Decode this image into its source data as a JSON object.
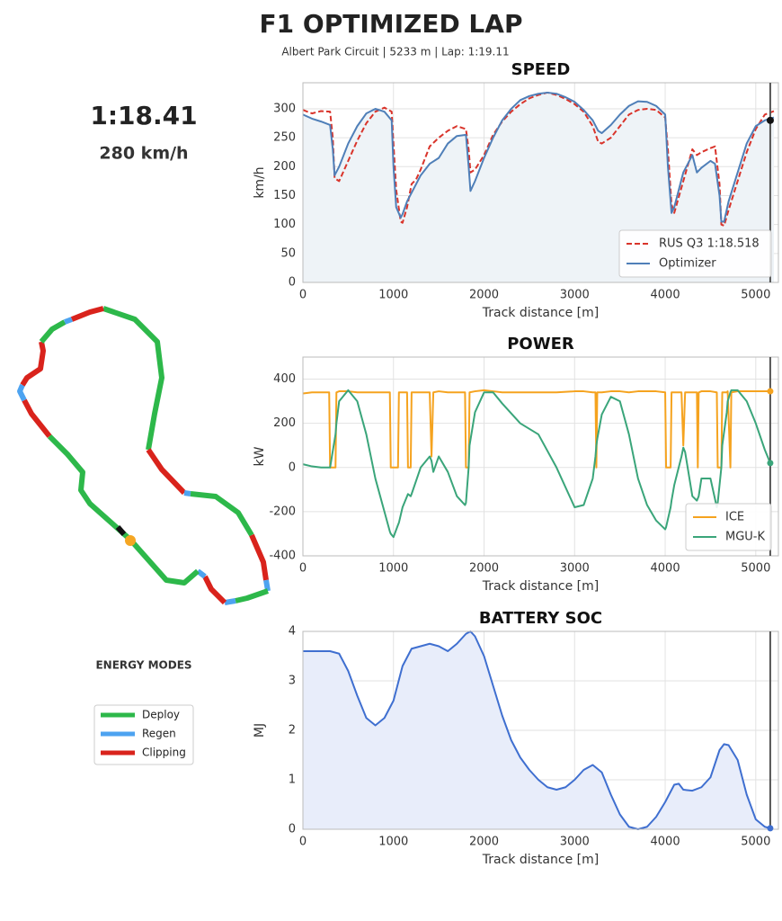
{
  "header": {
    "title": "F1 OPTIMIZED LAP",
    "subtitle": "Albert Park Circuit  |  5233 m  |  Lap: 1:19.11"
  },
  "lap_time": "1:18.41",
  "current_speed": "280 km/h",
  "energy_modes": {
    "title": "ENERGY MODES",
    "items": [
      {
        "label": "Deploy",
        "color": "#2db84a"
      },
      {
        "label": "Regen",
        "color": "#4da3f0"
      },
      {
        "label": "Clipping",
        "color": "#d9231c"
      }
    ]
  },
  "chart_data": [
    {
      "type": "line",
      "title": "SPEED",
      "xlabel": "Track distance [m]",
      "ylabel": "km/h",
      "x": [
        0,
        100,
        200,
        300,
        330,
        350,
        400,
        500,
        600,
        700,
        800,
        900,
        980,
        1000,
        1030,
        1080,
        1100,
        1150,
        1200,
        1250,
        1300,
        1400,
        1500,
        1600,
        1700,
        1800,
        1830,
        1850,
        1900,
        2000,
        2100,
        2200,
        2300,
        2400,
        2500,
        2600,
        2700,
        2800,
        2900,
        3000,
        3100,
        3200,
        3260,
        3300,
        3400,
        3500,
        3600,
        3700,
        3800,
        3900,
        4000,
        4030,
        4070,
        4100,
        4200,
        4300,
        4350,
        4400,
        4500,
        4550,
        4600,
        4620,
        4650,
        4700,
        4800,
        4900,
        5000,
        5100,
        5200
      ],
      "series": [
        {
          "name": "RUS Q3 1:18.518",
          "color": "#d9342b",
          "dashed": true,
          "values": [
            298,
            292,
            296,
            295,
            250,
            180,
            175,
            210,
            245,
            275,
            295,
            302,
            295,
            240,
            160,
            105,
            103,
            130,
            170,
            178,
            195,
            235,
            250,
            262,
            270,
            265,
            230,
            190,
            195,
            220,
            255,
            278,
            295,
            308,
            318,
            324,
            328,
            324,
            317,
            308,
            295,
            270,
            243,
            240,
            250,
            270,
            290,
            298,
            300,
            298,
            285,
            230,
            135,
            120,
            175,
            230,
            220,
            225,
            232,
            235,
            170,
            100,
            98,
            125,
            175,
            225,
            265,
            290,
            296
          ]
        },
        {
          "name": "Optimizer",
          "color": "#4f7fb8",
          "fill": "#eef3f7",
          "values": [
            290,
            283,
            278,
            272,
            230,
            185,
            200,
            240,
            270,
            292,
            300,
            295,
            280,
            200,
            130,
            112,
            118,
            140,
            155,
            170,
            185,
            205,
            215,
            240,
            253,
            255,
            200,
            158,
            175,
            215,
            250,
            280,
            300,
            315,
            322,
            326,
            328,
            326,
            320,
            312,
            298,
            280,
            262,
            258,
            272,
            290,
            305,
            313,
            312,
            305,
            290,
            200,
            120,
            130,
            190,
            220,
            190,
            198,
            210,
            205,
            150,
            105,
            105,
            140,
            190,
            240,
            270,
            280,
            285
          ]
        }
      ],
      "xlim": [
        0,
        5250
      ],
      "ylim": [
        0,
        345
      ],
      "xticks": [
        0,
        1000,
        2000,
        3000,
        4000,
        5000
      ],
      "yticks": [
        0,
        50,
        100,
        150,
        200,
        250,
        300
      ],
      "grid": true,
      "legend": "lower right",
      "cursor_x": 5160,
      "cursor_value": 280
    },
    {
      "type": "line",
      "title": "POWER",
      "xlabel": "Track distance [m]",
      "ylabel": "kW",
      "x": [
        0,
        100,
        200,
        290,
        300,
        360,
        370,
        400,
        500,
        600,
        700,
        800,
        900,
        960,
        970,
        1000,
        1050,
        1060,
        1100,
        1150,
        1160,
        1190,
        1200,
        1300,
        1400,
        1420,
        1440,
        1500,
        1600,
        1700,
        1790,
        1800,
        1830,
        1840,
        1900,
        2000,
        2100,
        2200,
        2400,
        2600,
        2800,
        3000,
        3100,
        3200,
        3230,
        3240,
        3250,
        3300,
        3400,
        3500,
        3600,
        3700,
        3800,
        3900,
        4000,
        4010,
        4060,
        4070,
        4100,
        4180,
        4200,
        4220,
        4300,
        4350,
        4360,
        4370,
        4400,
        4500,
        4570,
        4580,
        4620,
        4630,
        4680,
        4690,
        4720,
        4730,
        4800,
        4900,
        5000,
        5100,
        5160
      ],
      "series": [
        {
          "name": "ICE",
          "color": "#f5a31f",
          "values": [
            335,
            340,
            340,
            340,
            0,
            0,
            340,
            345,
            345,
            340,
            340,
            340,
            340,
            340,
            0,
            0,
            0,
            340,
            340,
            340,
            0,
            0,
            340,
            340,
            340,
            50,
            340,
            345,
            340,
            340,
            340,
            0,
            0,
            340,
            345,
            350,
            345,
            340,
            340,
            340,
            340,
            345,
            345,
            340,
            340,
            0,
            340,
            340,
            345,
            345,
            340,
            345,
            345,
            345,
            340,
            0,
            0,
            340,
            340,
            340,
            100,
            340,
            340,
            340,
            0,
            340,
            345,
            345,
            340,
            0,
            0,
            340,
            340,
            345,
            0,
            340,
            345,
            345,
            345,
            345,
            345
          ]
        },
        {
          "name": "MGU-K",
          "color": "#3aa57a",
          "values": [
            15,
            5,
            0,
            0,
            0,
            150,
            200,
            300,
            350,
            300,
            150,
            -50,
            -200,
            -290,
            -300,
            -315,
            -260,
            -250,
            -180,
            -130,
            -120,
            -130,
            -120,
            0,
            50,
            30,
            -20,
            50,
            -20,
            -130,
            -170,
            -160,
            0,
            100,
            250,
            340,
            340,
            290,
            200,
            150,
            0,
            -180,
            -170,
            -50,
            50,
            100,
            130,
            240,
            320,
            300,
            150,
            -50,
            -170,
            -240,
            -280,
            -270,
            -180,
            -150,
            -80,
            50,
            90,
            70,
            -130,
            -150,
            -140,
            -130,
            -50,
            -50,
            -180,
            -160,
            0,
            100,
            250,
            300,
            340,
            350,
            350,
            300,
            200,
            80,
            20
          ]
        }
      ],
      "xlim": [
        0,
        5250
      ],
      "ylim": [
        -400,
        500
      ],
      "xticks": [
        0,
        1000,
        2000,
        3000,
        4000,
        5000
      ],
      "yticks": [
        -400,
        -200,
        0,
        200,
        400
      ],
      "grid": true,
      "legend": "lower right",
      "cursor_x": 5160
    },
    {
      "type": "line",
      "title": "BATTERY SOC",
      "xlabel": "Track distance [m]",
      "ylabel": "MJ",
      "x": [
        0,
        100,
        200,
        300,
        400,
        500,
        600,
        700,
        800,
        900,
        1000,
        1100,
        1200,
        1300,
        1400,
        1500,
        1600,
        1700,
        1800,
        1850,
        1900,
        2000,
        2100,
        2200,
        2300,
        2400,
        2500,
        2600,
        2700,
        2800,
        2900,
        3000,
        3100,
        3200,
        3300,
        3400,
        3500,
        3600,
        3700,
        3800,
        3900,
        4000,
        4100,
        4150,
        4200,
        4300,
        4400,
        4500,
        4600,
        4650,
        4700,
        4800,
        4900,
        5000,
        5100,
        5160
      ],
      "series": [
        {
          "name": "SOC",
          "color": "#3f6fd0",
          "fill": "#e8edfa",
          "values": [
            3.6,
            3.6,
            3.6,
            3.6,
            3.55,
            3.2,
            2.7,
            2.25,
            2.1,
            2.25,
            2.6,
            3.3,
            3.65,
            3.7,
            3.75,
            3.7,
            3.6,
            3.75,
            3.95,
            4.0,
            3.9,
            3.5,
            2.9,
            2.3,
            1.8,
            1.45,
            1.2,
            1.0,
            0.85,
            0.8,
            0.85,
            1.0,
            1.2,
            1.3,
            1.15,
            0.7,
            0.3,
            0.05,
            0.0,
            0.05,
            0.25,
            0.55,
            0.9,
            0.92,
            0.8,
            0.78,
            0.85,
            1.05,
            1.6,
            1.72,
            1.7,
            1.4,
            0.7,
            0.2,
            0.05,
            0.02
          ]
        }
      ],
      "xlim": [
        0,
        5250
      ],
      "ylim": [
        0,
        4
      ],
      "xticks": [
        0,
        1000,
        2000,
        3000,
        4000,
        5000
      ],
      "yticks": [
        0,
        1,
        2,
        3,
        4
      ],
      "grid": true,
      "cursor_x": 5160
    }
  ]
}
